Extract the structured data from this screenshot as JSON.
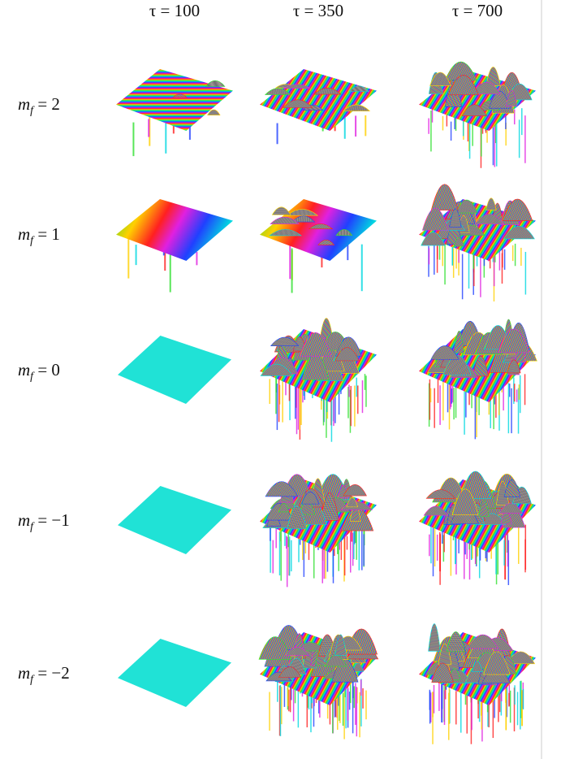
{
  "column_headers": [
    "τ = 100",
    "τ = 350",
    "τ = 700"
  ],
  "row_labels": [
    {
      "base": "m",
      "subscript": "f",
      "relation": " = 2"
    },
    {
      "base": "m",
      "subscript": "f",
      "relation": " = 1"
    },
    {
      "base": "m",
      "subscript": "f",
      "relation": " = 0"
    },
    {
      "base": "m",
      "subscript": "f",
      "relation": " = −1"
    },
    {
      "base": "m",
      "subscript": "f",
      "relation": " = −2"
    }
  ]
}
